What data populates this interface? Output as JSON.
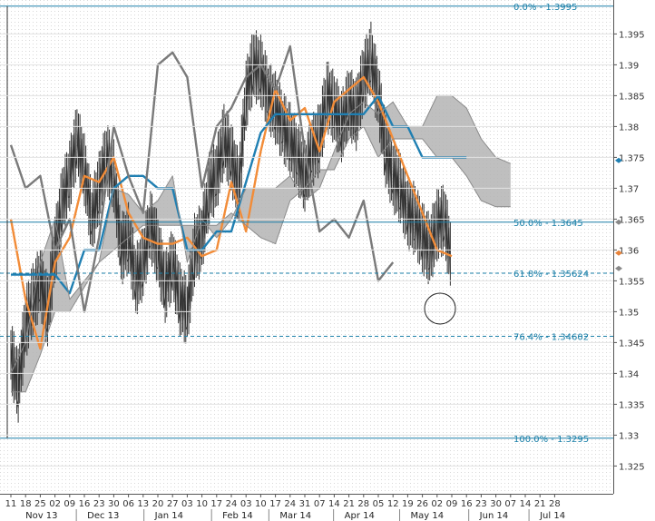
{
  "chart_data": {
    "type": "line",
    "title": "",
    "xlabel": "",
    "ylabel": "",
    "ylim": [
      1.3205,
      1.4005
    ],
    "grid": true,
    "y_ticks": [
      1.325,
      1.33,
      1.335,
      1.34,
      1.345,
      1.35,
      1.355,
      1.36,
      1.365,
      1.37,
      1.375,
      1.38,
      1.385,
      1.39,
      1.395
    ],
    "x_days": [
      "11",
      "18",
      "25",
      "02",
      "09",
      "16",
      "23",
      "30",
      "06",
      "13",
      "20",
      "27",
      "03",
      "10",
      "17",
      "24",
      "03",
      "10",
      "17",
      "24",
      "31",
      "07",
      "14",
      "21",
      "28",
      "05",
      "12",
      "19",
      "26",
      "02",
      "09",
      "16",
      "23",
      "30",
      "07",
      "14",
      "21",
      "28"
    ],
    "x_months": [
      {
        "label": "Nov 13",
        "idx": 0.5
      },
      {
        "label": "Dec 13",
        "idx": 4.7
      },
      {
        "label": "Jan 14",
        "idx": 9.3
      },
      {
        "label": "Feb 14",
        "idx": 13.9
      },
      {
        "label": "Mar 14",
        "idx": 17.8
      },
      {
        "label": "Apr 14",
        "idx": 22.2
      },
      {
        "label": "May 14",
        "idx": 26.7
      },
      {
        "label": "Jun 14",
        "idx": 31.4
      },
      {
        "label": "Jul 14",
        "idx": 35.5
      }
    ],
    "fib_levels": [
      {
        "label": "0.0%",
        "value": 1.3995,
        "text": "1.3995",
        "style": "solid"
      },
      {
        "label": "50.0%",
        "value": 1.3645,
        "text": "1.3645",
        "style": "solid"
      },
      {
        "label": "61.8%",
        "value": 1.35624,
        "text": "1.35624",
        "style": "dashed"
      },
      {
        "label": "76.4%",
        "value": 1.34602,
        "text": "1.34602",
        "style": "dashed"
      },
      {
        "label": "100.0%",
        "value": 1.3295,
        "text": "1.3295",
        "style": "solid"
      }
    ],
    "series": [
      {
        "role": "tenkan",
        "color": "#f28c38",
        "x": [
          0,
          1,
          2,
          3,
          4,
          5,
          6,
          7,
          8,
          9,
          10,
          11,
          12,
          13,
          14,
          15,
          16,
          17,
          18,
          19,
          20,
          21,
          22,
          23,
          24,
          25,
          26,
          27,
          28,
          29,
          30
        ],
        "values": [
          1.365,
          1.352,
          1.344,
          1.358,
          1.362,
          1.372,
          1.371,
          1.375,
          1.366,
          1.362,
          1.361,
          1.361,
          1.362,
          1.359,
          1.36,
          1.371,
          1.363,
          1.376,
          1.386,
          1.381,
          1.383,
          1.376,
          1.384,
          1.386,
          1.388,
          1.384,
          1.378,
          1.372,
          1.366,
          1.36,
          1.359
        ]
      },
      {
        "role": "kijun",
        "color": "#1f7fb2",
        "x": [
          0,
          1,
          2,
          3,
          4,
          5,
          6,
          7,
          8,
          9,
          10,
          11,
          12,
          13,
          14,
          15,
          16,
          17,
          18,
          19,
          20,
          21,
          22,
          23,
          24,
          25,
          26,
          27,
          28,
          29,
          30,
          31
        ],
        "values": [
          1.356,
          1.356,
          1.356,
          1.356,
          1.353,
          1.36,
          1.36,
          1.37,
          1.372,
          1.372,
          1.37,
          1.37,
          1.36,
          1.36,
          1.363,
          1.363,
          1.371,
          1.379,
          1.382,
          1.382,
          1.382,
          1.382,
          1.382,
          1.382,
          1.382,
          1.385,
          1.38,
          1.38,
          1.375,
          1.375,
          1.375,
          1.375
        ]
      },
      {
        "role": "chikou",
        "color": "#7a7a7a",
        "x": [
          0,
          1,
          2,
          3,
          4,
          5,
          6,
          7,
          8,
          9,
          10,
          11,
          12,
          13,
          14,
          15,
          16,
          17,
          18,
          19,
          20,
          21,
          22,
          23,
          24,
          25,
          26
        ],
        "values": [
          1.377,
          1.37,
          1.372,
          1.36,
          1.365,
          1.35,
          1.362,
          1.38,
          1.372,
          1.366,
          1.39,
          1.392,
          1.388,
          1.37,
          1.38,
          1.383,
          1.388,
          1.39,
          1.386,
          1.393,
          1.376,
          1.363,
          1.365,
          1.362,
          1.368,
          1.355,
          1.358
        ]
      },
      {
        "role": "span_a",
        "color": "#8a8a8a",
        "x": [
          0,
          1,
          2,
          3,
          4,
          5,
          6,
          7,
          8,
          9,
          10,
          11,
          12,
          13,
          14,
          15,
          16,
          17,
          18,
          19,
          20,
          21,
          22,
          23,
          24,
          25,
          26,
          27,
          28,
          29,
          30,
          31,
          32,
          33,
          34
        ],
        "values": [
          1.34,
          1.345,
          1.358,
          1.365,
          1.352,
          1.355,
          1.358,
          1.37,
          1.369,
          1.366,
          1.368,
          1.372,
          1.358,
          1.365,
          1.362,
          1.365,
          1.37,
          1.37,
          1.37,
          1.372,
          1.368,
          1.37,
          1.376,
          1.382,
          1.384,
          1.382,
          1.384,
          1.38,
          1.38,
          1.385,
          1.385,
          1.383,
          1.378,
          1.375,
          1.374
        ]
      },
      {
        "role": "span_b",
        "color": "#8a8a8a",
        "x": [
          0,
          1,
          2,
          3,
          4,
          5,
          6,
          7,
          8,
          9,
          10,
          11,
          12,
          13,
          14,
          15,
          16,
          17,
          18,
          19,
          20,
          21,
          22,
          23,
          24,
          25,
          26,
          27,
          28,
          29,
          30,
          31,
          32,
          33,
          34
        ],
        "values": [
          1.337,
          1.337,
          1.343,
          1.35,
          1.35,
          1.354,
          1.358,
          1.36,
          1.362,
          1.364,
          1.364,
          1.364,
          1.364,
          1.364,
          1.364,
          1.366,
          1.364,
          1.362,
          1.361,
          1.368,
          1.37,
          1.373,
          1.373,
          1.378,
          1.38,
          1.375,
          1.378,
          1.378,
          1.378,
          1.375,
          1.375,
          1.372,
          1.368,
          1.367,
          1.367
        ]
      }
    ],
    "price_path": [
      [
        0,
        1.343
      ],
      [
        0.5,
        1.338
      ],
      [
        1,
        1.348
      ],
      [
        1.5,
        1.352
      ],
      [
        2,
        1.355
      ],
      [
        2.5,
        1.35
      ],
      [
        3,
        1.36
      ],
      [
        3.5,
        1.368
      ],
      [
        4,
        1.372
      ],
      [
        4.5,
        1.378
      ],
      [
        5,
        1.373
      ],
      [
        5.5,
        1.365
      ],
      [
        6,
        1.37
      ],
      [
        6.5,
        1.375
      ],
      [
        7,
        1.372
      ],
      [
        7.5,
        1.36
      ],
      [
        8,
        1.362
      ],
      [
        8.5,
        1.355
      ],
      [
        9,
        1.358
      ],
      [
        9.5,
        1.364
      ],
      [
        10,
        1.36
      ],
      [
        10.5,
        1.354
      ],
      [
        11,
        1.358
      ],
      [
        11.5,
        1.352
      ],
      [
        12,
        1.35
      ],
      [
        12.5,
        1.36
      ],
      [
        13,
        1.362
      ],
      [
        13.5,
        1.37
      ],
      [
        14,
        1.372
      ],
      [
        14.5,
        1.378
      ],
      [
        15,
        1.375
      ],
      [
        15.5,
        1.37
      ],
      [
        16,
        1.385
      ],
      [
        16.5,
        1.39
      ],
      [
        17,
        1.389
      ],
      [
        17.5,
        1.385
      ],
      [
        18,
        1.383
      ],
      [
        18.5,
        1.38
      ],
      [
        19,
        1.378
      ],
      [
        19.5,
        1.375
      ],
      [
        20,
        1.372
      ],
      [
        20.5,
        1.376
      ],
      [
        21,
        1.378
      ],
      [
        21.5,
        1.385
      ],
      [
        22,
        1.383
      ],
      [
        22.5,
        1.38
      ],
      [
        23,
        1.384
      ],
      [
        23.5,
        1.382
      ],
      [
        24,
        1.388
      ],
      [
        24.5,
        1.391
      ],
      [
        25,
        1.385
      ],
      [
        25.5,
        1.376
      ],
      [
        26,
        1.372
      ],
      [
        26.5,
        1.37
      ],
      [
        27,
        1.366
      ],
      [
        27.5,
        1.365
      ],
      [
        28,
        1.362
      ],
      [
        28.5,
        1.36
      ],
      [
        29,
        1.364
      ],
      [
        29.5,
        1.365
      ],
      [
        30,
        1.358
      ]
    ],
    "right_markers": [
      {
        "value": 1.3645,
        "color": "#888888"
      },
      {
        "value": 1.3595,
        "color": "#e8833a"
      },
      {
        "value": 1.357,
        "color": "#888888"
      },
      {
        "value": 1.3745,
        "color": "#1f7fb2"
      }
    ],
    "annotation_circle": {
      "x": 29.2,
      "y": 1.3505
    }
  }
}
